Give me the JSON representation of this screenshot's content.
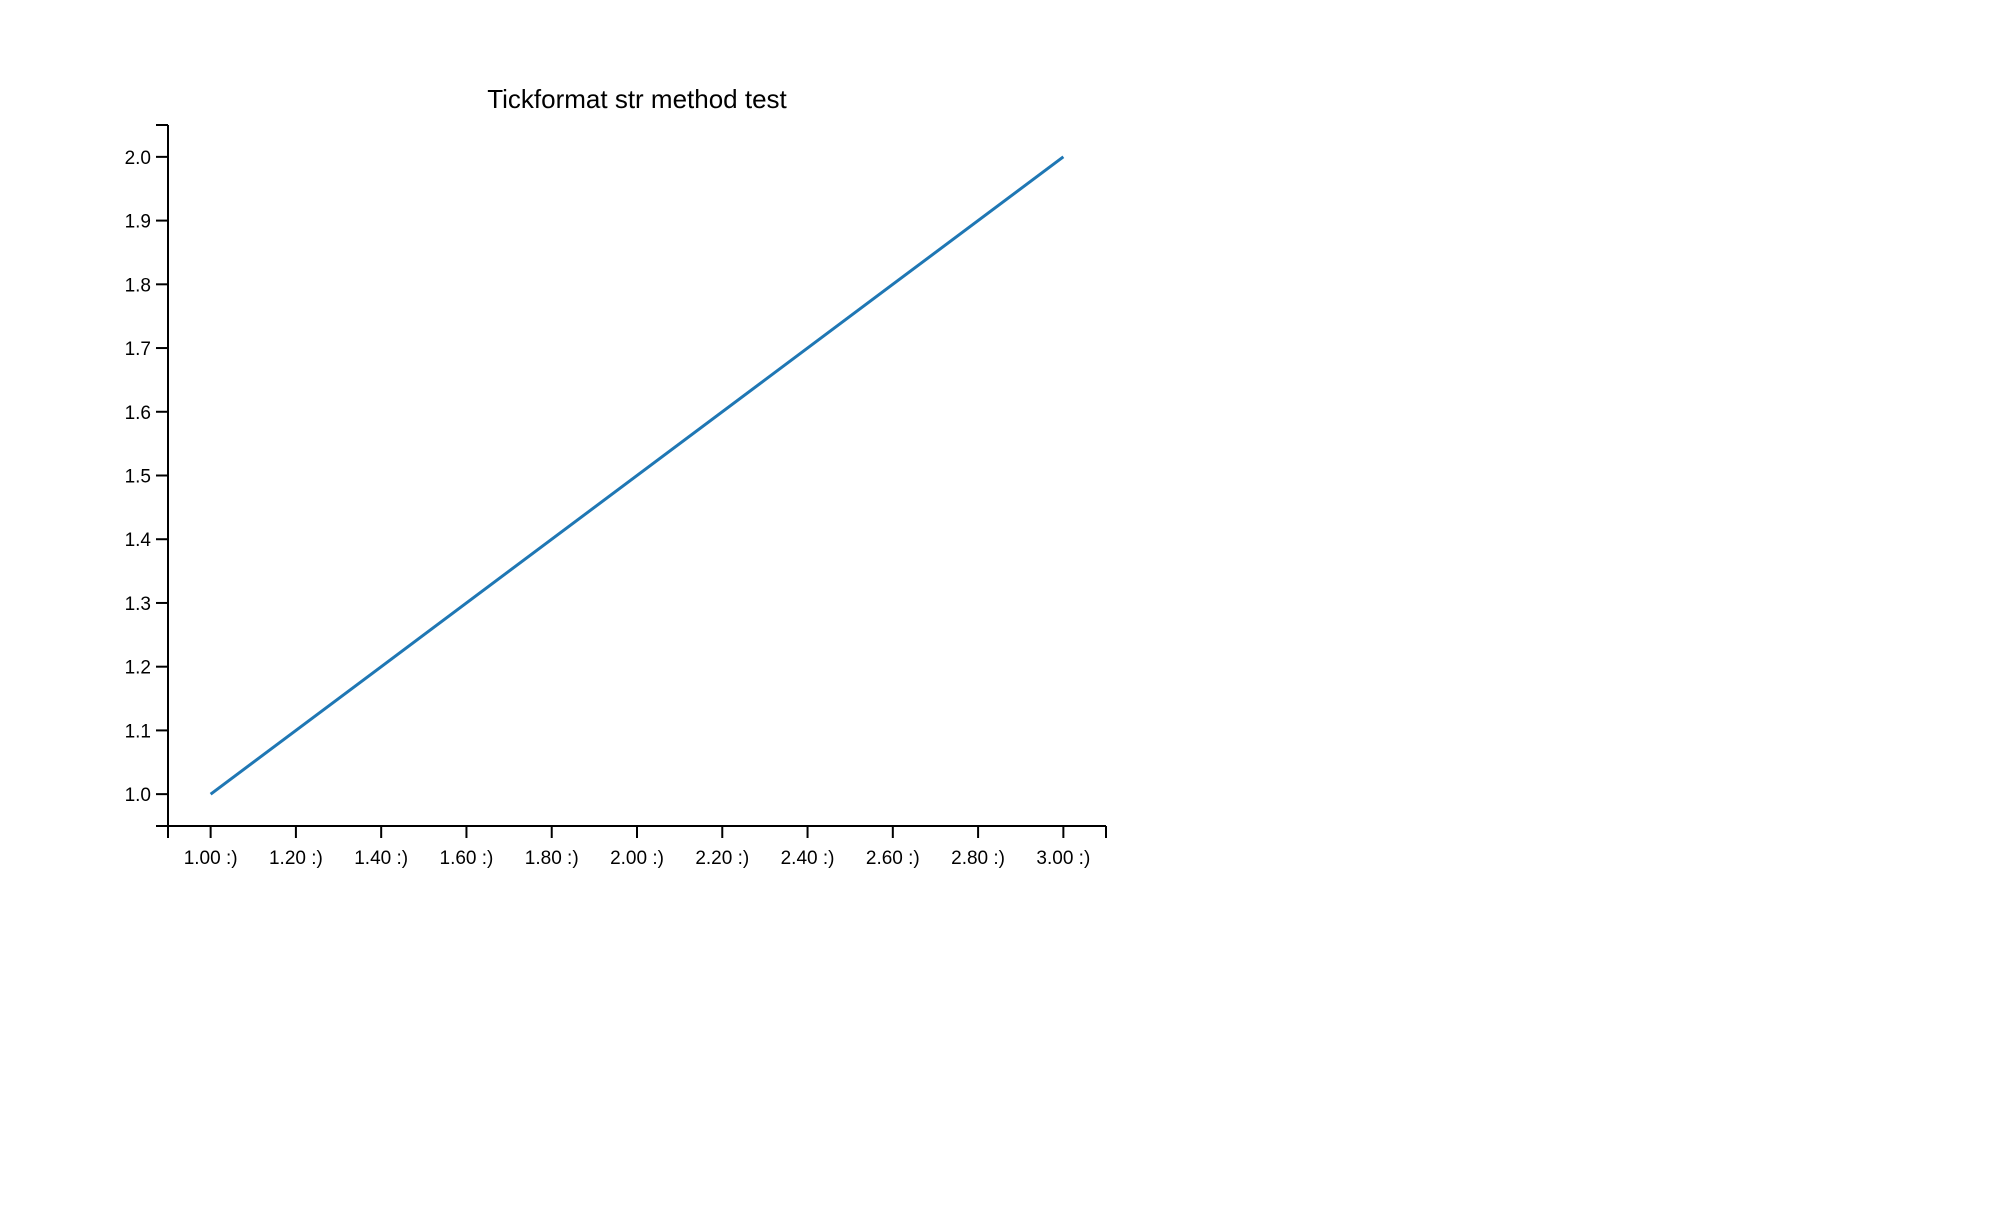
{
  "chart_data": {
    "type": "line",
    "title": "Tickformat str method test",
    "xlabel": "",
    "ylabel": "",
    "x": [
      1.0,
      3.0
    ],
    "series": [
      {
        "values": [
          1.0,
          2.0
        ],
        "color": "#1f77b4"
      }
    ],
    "xlim": [
      0.9,
      3.1
    ],
    "ylim": [
      0.95,
      2.05
    ],
    "x_ticks": [
      1.0,
      1.2,
      1.4,
      1.6,
      1.8,
      2.0,
      2.2,
      2.4,
      2.6,
      2.8,
      3.0
    ],
    "x_tick_labels": [
      "1.00 :)",
      "1.20 :)",
      "1.40 :)",
      "1.60 :)",
      "1.80 :)",
      "2.00 :)",
      "2.20 :)",
      "2.40 :)",
      "2.60 :)",
      "2.80 :)",
      "3.00 :)"
    ],
    "y_ticks": [
      1.0,
      1.1,
      1.2,
      1.3,
      1.4,
      1.5,
      1.6,
      1.7,
      1.8,
      1.9,
      2.0
    ],
    "y_tick_labels": [
      "1.0",
      "1.1",
      "1.2",
      "1.3",
      "1.4",
      "1.5",
      "1.6",
      "1.7",
      "1.8",
      "1.9",
      "2.0"
    ],
    "grid": false,
    "legend": "none"
  }
}
